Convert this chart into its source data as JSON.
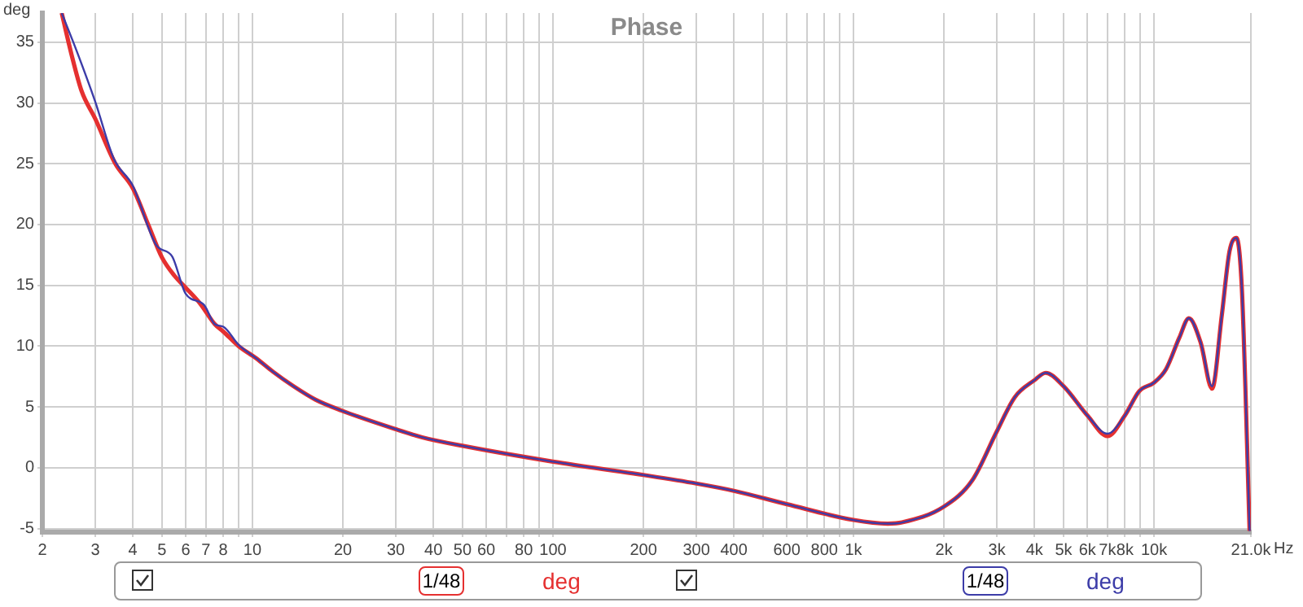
{
  "chart_data": {
    "type": "line",
    "title": "Phase",
    "ylabel": "deg",
    "xlabel": "Hz",
    "log": "x",
    "grid": true,
    "xlim": [
      2,
      21000
    ],
    "ylim": [
      -5.3,
      37.4
    ],
    "xticks": [
      2,
      3,
      4,
      5,
      6,
      7,
      8,
      {
        "value": 9,
        "label": null
      },
      10,
      20,
      30,
      40,
      50,
      60,
      {
        "value": 70,
        "label": null
      },
      80,
      {
        "value": 90,
        "label": null
      },
      100,
      200,
      300,
      400,
      {
        "value": 500,
        "label": null
      },
      600,
      {
        "value": 700,
        "label": null
      },
      800,
      {
        "value": 900,
        "label": null
      },
      {
        "value": 1000,
        "label": "1k"
      },
      {
        "value": 2000,
        "label": "2k"
      },
      {
        "value": 3000,
        "label": "3k"
      },
      {
        "value": 4000,
        "label": "4k"
      },
      {
        "value": 5000,
        "label": "5k"
      },
      {
        "value": 6000,
        "label": "6k"
      },
      {
        "value": 7000,
        "label": "7k"
      },
      {
        "value": 8000,
        "label": "8k"
      },
      {
        "value": 9000,
        "label": null
      },
      {
        "value": 10000,
        "label": "10k"
      },
      {
        "value": 21000,
        "label": "21.0k"
      }
    ],
    "yticks": [
      -5,
      0,
      5,
      10,
      15,
      20,
      25,
      30,
      35
    ],
    "annotations": [
      "1/48",
      "deg",
      "1/48",
      "deg"
    ],
    "series": [
      {
        "color": "#e53030",
        "x": [
          2.32,
          2.5,
          2.7,
          3.0,
          3.5,
          4,
          4.5,
          5,
          5.5,
          6,
          6.7,
          7.5,
          8,
          9,
          10.3,
          11.7,
          13.7,
          16.2,
          19.8,
          29.7,
          36.7,
          50,
          100,
          200,
          300,
          400,
          600,
          1000,
          1300,
          1450,
          2000,
          2490,
          3000,
          3440,
          4000,
          4360,
          5000,
          6000,
          7000,
          8000,
          8930,
          10000,
          10960,
          12140,
          13060,
          14290,
          15600,
          16800,
          17830,
          18800,
          19600,
          20800
        ],
        "values": [
          37.4,
          34,
          31.0,
          28.7,
          25,
          23,
          20,
          17.3,
          15.8,
          14.8,
          13.5,
          11.8,
          11.2,
          10,
          9.0,
          7.9,
          6.7,
          5.6,
          4.7,
          3.2,
          2.5,
          1.8,
          0.5,
          -0.6,
          -1.3,
          -1.9,
          -3.0,
          -4.3,
          -4.6,
          -4.5,
          -3.2,
          -1.0,
          3.0,
          5.8,
          7.2,
          7.8,
          6.7,
          4.3,
          2.6,
          4.3,
          6.3,
          7.0,
          8.1,
          10.7,
          12.3,
          10.3,
          6.5,
          12.5,
          17.8,
          18.9,
          14.7,
          -5.2
        ]
      },
      {
        "color": "#3c3ca8",
        "x": [
          2.32,
          2.6,
          3.0,
          3.46,
          4,
          4.79,
          5.4,
          6,
          6.9,
          7.5,
          8,
          9,
          10.3,
          11.7,
          13.7,
          16.2,
          19.8,
          29.7,
          36.7,
          50,
          100,
          200,
          300,
          400,
          600,
          1000,
          1300,
          1450,
          2000,
          2490,
          3000,
          3440,
          4000,
          4360,
          5000,
          6000,
          7000,
          8000,
          8930,
          10000,
          10960,
          12140,
          13060,
          14290,
          15600,
          16800,
          17830,
          18800,
          19600,
          20800
        ],
        "values": [
          37.4,
          34.3,
          30.1,
          25.4,
          23.2,
          18.3,
          17.4,
          14.3,
          13.4,
          11.8,
          11.6,
          10.1,
          9.0,
          7.9,
          6.7,
          5.6,
          4.7,
          3.2,
          2.5,
          1.8,
          0.5,
          -0.6,
          -1.3,
          -1.9,
          -3.0,
          -4.3,
          -4.6,
          -4.5,
          -3.2,
          -1.0,
          3.0,
          5.8,
          7.2,
          7.8,
          6.7,
          4.3,
          2.8,
          4.3,
          6.3,
          7.0,
          8.1,
          10.7,
          12.3,
          10.3,
          6.7,
          12.5,
          17.8,
          18.9,
          14.7,
          -5.2
        ]
      }
    ]
  }
}
